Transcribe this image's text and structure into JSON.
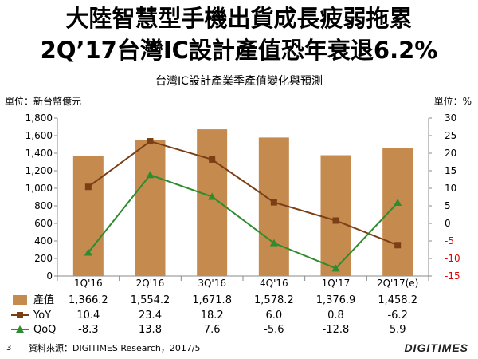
{
  "header": {
    "title_line1": "大陸智慧型手機出貨成長疲弱拖累",
    "title_line2": "2Q’17台灣IC設計產值恐年衰退6.2%",
    "subtitle": "台灣IC設計產業季產值變化與預測"
  },
  "units": {
    "left": "單位：新台幣億元",
    "right": "單位：%"
  },
  "footer": {
    "page_number": "3",
    "source": "資料來源：DIGITIMES Research，2017/5",
    "logo": "DIGITIMES"
  },
  "colors": {
    "bar": "#C48A4E",
    "yoy": "#7B3F16",
    "qoq": "#2E8B2E",
    "neg_axis": "#E00000"
  },
  "chart_data": {
    "type": "bar",
    "categories": [
      "1Q'16",
      "2Q'16",
      "3Q'16",
      "4Q'16",
      "1Q'17",
      "2Q'17(e)"
    ],
    "series": [
      {
        "name": "產值",
        "type": "bar",
        "axis": "left",
        "values": [
          1366.2,
          1554.2,
          1671.8,
          1578.2,
          1376.9,
          1458.2
        ],
        "labels": [
          "1,366.2",
          "1,554.2",
          "1,671.8",
          "1,578.2",
          "1,376.9",
          "1,458.2"
        ]
      },
      {
        "name": "YoY",
        "type": "line",
        "axis": "right",
        "values": [
          10.4,
          23.4,
          18.2,
          6.0,
          0.8,
          -6.2
        ],
        "labels": [
          "10.4",
          "23.4",
          "18.2",
          "6.0",
          "0.8",
          "-6.2"
        ]
      },
      {
        "name": "QoQ",
        "type": "line",
        "axis": "right",
        "values": [
          -8.3,
          13.8,
          7.6,
          -5.6,
          -12.8,
          5.9
        ],
        "labels": [
          "-8.3",
          "13.8",
          "7.6",
          "-5.6",
          "-12.8",
          "5.9"
        ]
      }
    ],
    "left_axis": {
      "ylim": [
        0,
        1800
      ],
      "ticks": [
        "0",
        "200",
        "400",
        "600",
        "800",
        "1,000",
        "1,200",
        "1,400",
        "1,600",
        "1,800"
      ]
    },
    "right_axis": {
      "ylim": [
        -15,
        30
      ],
      "ticks": [
        "-15",
        "-10",
        "-5",
        "0",
        "5",
        "10",
        "15",
        "20",
        "25",
        "30"
      ]
    },
    "grid": false,
    "legend": "data-table-below"
  }
}
